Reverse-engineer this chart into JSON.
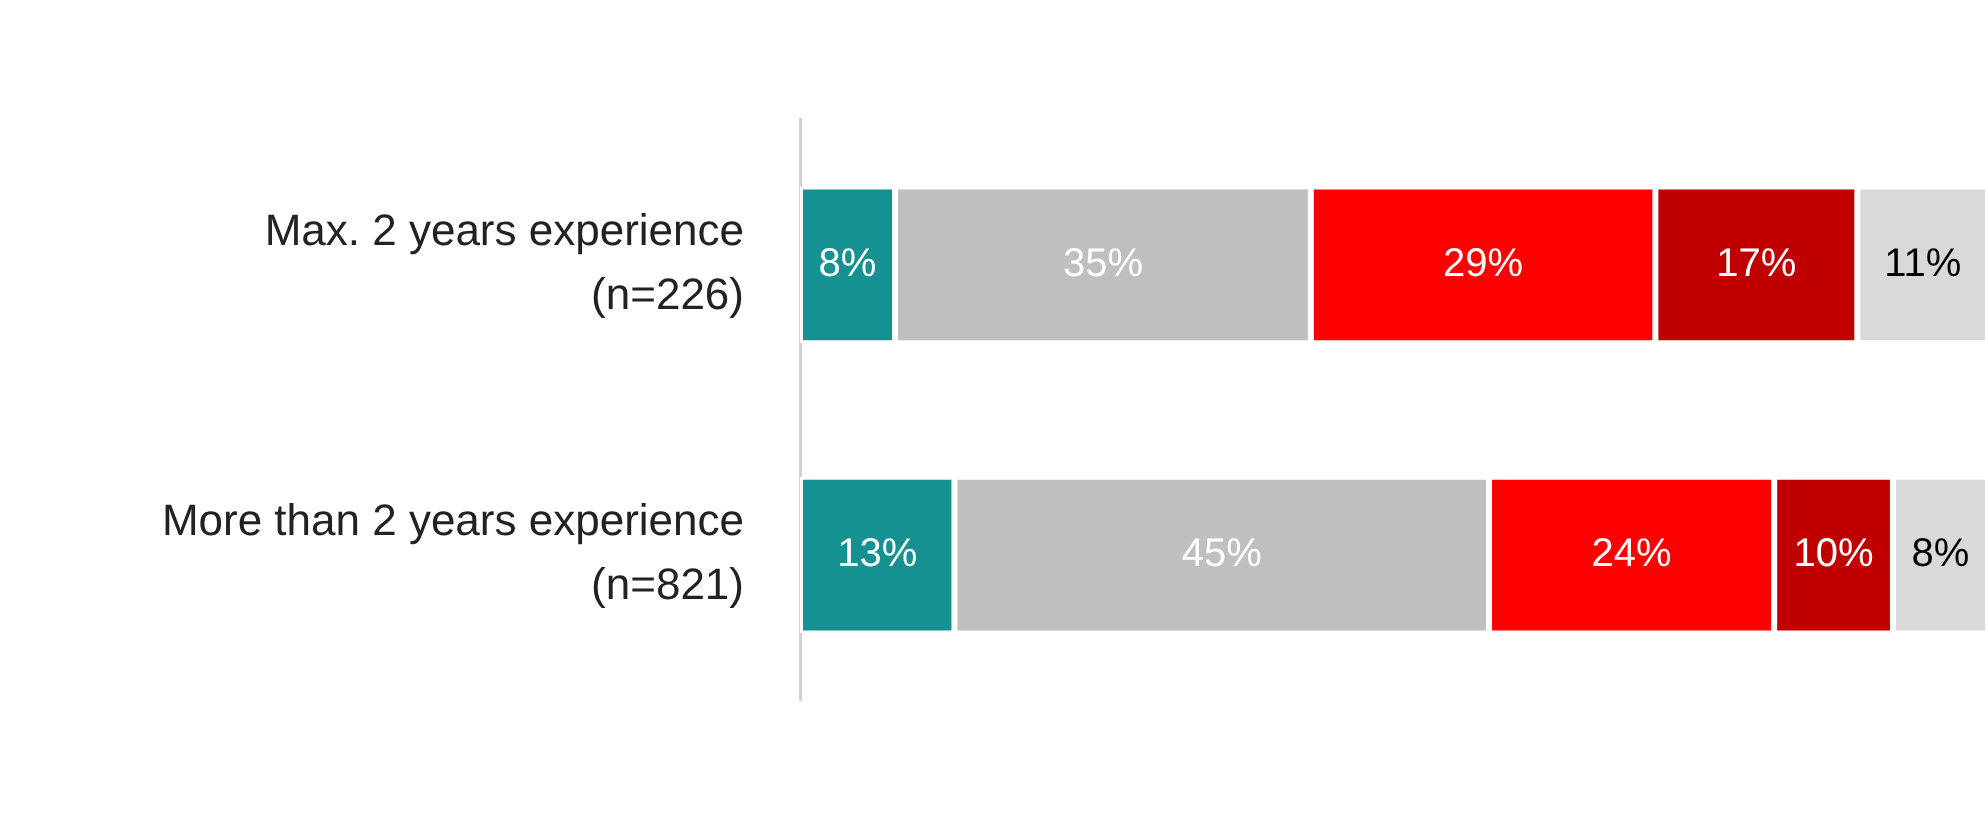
{
  "chart_data": {
    "type": "bar",
    "orientation": "horizontal",
    "stacked": true,
    "categories": [
      "Max. 2 years experience\n(n=226)",
      "More than 2 years experience\n(n=821)"
    ],
    "xlim": [
      0,
      100
    ],
    "legend": false,
    "tick_labels": "y",
    "series": [
      {
        "color": "#169191",
        "values": [
          8,
          13
        ],
        "value_labels": [
          "8%",
          "13%"
        ]
      },
      {
        "color": "#bfbfbf",
        "values": [
          35,
          45
        ],
        "value_labels": [
          "35%",
          "45%"
        ]
      },
      {
        "color": "#ff0000",
        "values": [
          29,
          24
        ],
        "value_labels": [
          "29%",
          "24%"
        ]
      },
      {
        "color": "#c00000",
        "values": [
          17,
          10
        ],
        "value_labels": [
          "17%",
          "10%"
        ]
      },
      {
        "color": "#d9d9d9",
        "values": [
          11,
          8
        ],
        "value_labels": [
          "11%",
          "8%"
        ]
      }
    ]
  }
}
